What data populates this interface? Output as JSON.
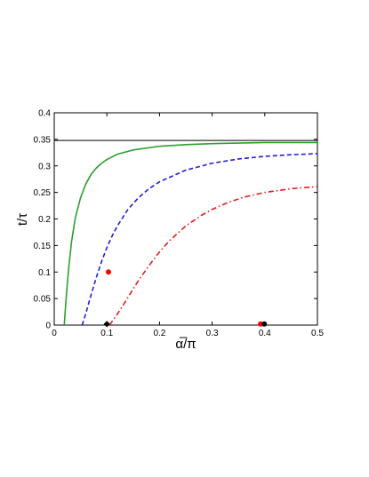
{
  "chart_data": {
    "type": "line",
    "xlabel": "α̅/π",
    "ylabel": "t/τ",
    "xlim": [
      0,
      0.5
    ],
    "ylim": [
      0,
      0.4
    ],
    "x_ticks": [
      "0",
      "0.1",
      "0.2",
      "0.3",
      "0.4",
      "0.5"
    ],
    "y_ticks": [
      "0",
      "0.05",
      "0.1",
      "0.15",
      "0.2",
      "0.25",
      "0.3",
      "0.35",
      "0.4"
    ],
    "grid": false,
    "reference_line": {
      "y": 0.348,
      "color": "#000000"
    },
    "series": [
      {
        "style": "solid",
        "color": "#2ca02c",
        "x": [
          0.019,
          0.021,
          0.024,
          0.028,
          0.033,
          0.04,
          0.05,
          0.06,
          0.07,
          0.08,
          0.09,
          0.1,
          0.12,
          0.15,
          0.2,
          0.25,
          0.3,
          0.35,
          0.4,
          0.45,
          0.5
        ],
        "y": [
          0.0,
          0.028,
          0.068,
          0.113,
          0.158,
          0.202,
          0.24,
          0.266,
          0.284,
          0.296,
          0.305,
          0.312,
          0.322,
          0.33,
          0.337,
          0.34,
          0.342,
          0.343,
          0.344,
          0.344,
          0.344
        ]
      },
      {
        "style": "dashed",
        "color": "#1f1fd6",
        "x": [
          0.053,
          0.06,
          0.07,
          0.08,
          0.09,
          0.1,
          0.11,
          0.12,
          0.14,
          0.16,
          0.18,
          0.2,
          0.25,
          0.3,
          0.35,
          0.4,
          0.45,
          0.5
        ],
        "y": [
          0.0,
          0.022,
          0.057,
          0.09,
          0.12,
          0.146,
          0.168,
          0.187,
          0.218,
          0.24,
          0.257,
          0.27,
          0.292,
          0.305,
          0.313,
          0.318,
          0.321,
          0.323
        ]
      },
      {
        "style": "dashdot",
        "color": "#e41a1c",
        "x": [
          0.105,
          0.11,
          0.12,
          0.13,
          0.14,
          0.15,
          0.16,
          0.18,
          0.2,
          0.22,
          0.25,
          0.28,
          0.3,
          0.33,
          0.36,
          0.4,
          0.45,
          0.5
        ],
        "y": [
          0.0,
          0.007,
          0.021,
          0.036,
          0.052,
          0.068,
          0.084,
          0.112,
          0.138,
          0.16,
          0.187,
          0.207,
          0.218,
          0.231,
          0.241,
          0.25,
          0.257,
          0.261
        ]
      }
    ],
    "markers": [
      {
        "shape": "circle",
        "color": "#ff0000",
        "x": 0.103,
        "y": 0.1
      },
      {
        "shape": "diamond",
        "color": "#000000",
        "x": 0.1,
        "y": 0.002
      },
      {
        "shape": "circle",
        "color": "#ff0000",
        "x": 0.392,
        "y": 0.002
      },
      {
        "shape": "circle",
        "color": "#000000",
        "x": 0.399,
        "y": 0.002
      }
    ]
  }
}
